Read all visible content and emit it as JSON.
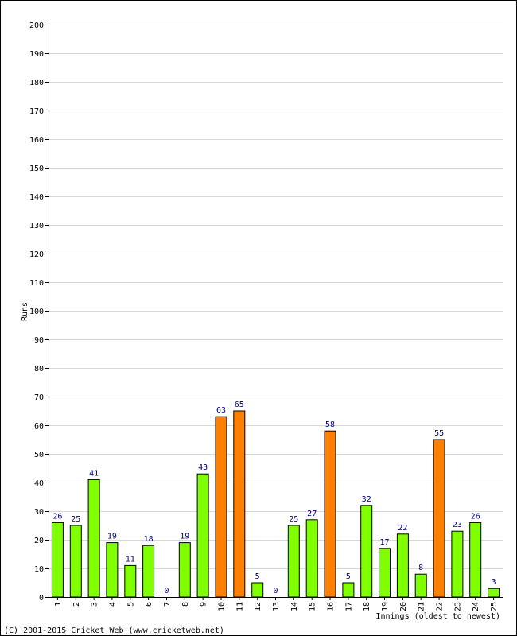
{
  "chart_data": {
    "type": "bar",
    "title": "",
    "xlabel": "Innings (oldest to newest)",
    "ylabel": "Runs",
    "ylim": [
      0,
      200
    ],
    "y_ticks": [
      0,
      10,
      20,
      30,
      40,
      50,
      60,
      70,
      80,
      90,
      100,
      110,
      120,
      130,
      140,
      150,
      160,
      170,
      180,
      190,
      200
    ],
    "grid": true,
    "categories": [
      "1",
      "2",
      "3",
      "4",
      "5",
      "6",
      "7",
      "8",
      "9",
      "10",
      "11",
      "12",
      "13",
      "14",
      "15",
      "16",
      "17",
      "18",
      "19",
      "20",
      "21",
      "22",
      "23",
      "24",
      "25"
    ],
    "values": [
      26,
      25,
      41,
      19,
      11,
      18,
      0,
      19,
      43,
      63,
      65,
      5,
      0,
      25,
      27,
      58,
      5,
      32,
      17,
      22,
      8,
      55,
      23,
      26,
      3
    ],
    "highlight_threshold": 50,
    "colors": {
      "bar_normal": "#80ff00",
      "bar_highlight": "#ff8000",
      "bar_outline": "#000000",
      "value_label": "#000080",
      "grid": "#d8d8d8",
      "axis": "#000000"
    }
  },
  "footer": {
    "copyright": "(C) 2001-2015 Cricket Web (www.cricketweb.net)"
  }
}
